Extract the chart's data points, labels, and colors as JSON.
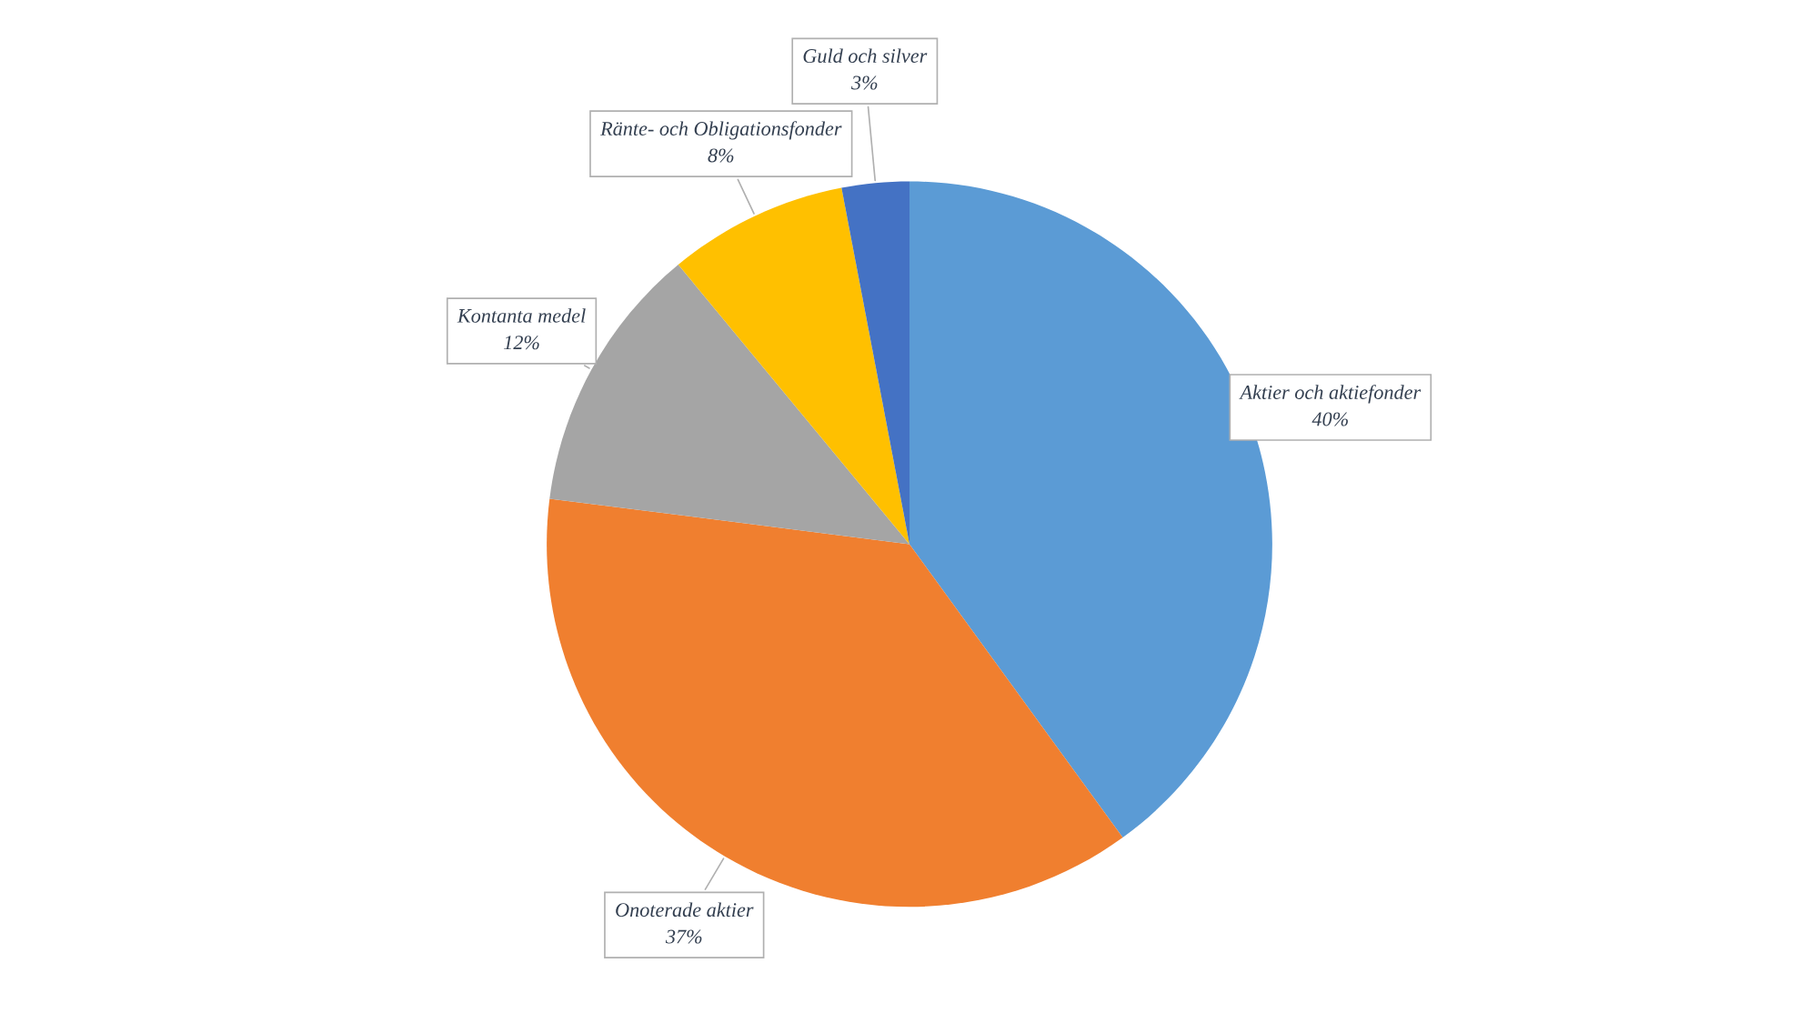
{
  "chart_data": {
    "type": "pie",
    "categories": [
      "Aktier och aktiefonder",
      "Onoterade aktier",
      "Kontanta medel",
      "Ränte- och Obligationsfonder",
      "Guld och silver"
    ],
    "values": [
      40,
      37,
      12,
      8,
      3
    ],
    "colors": [
      "#5b9bd5",
      "#f07f2f",
      "#a5a5a5",
      "#ffc000",
      "#4472c4"
    ],
    "value_labels": [
      "40%",
      "37%",
      "12%",
      "8%",
      "3%"
    ],
    "legend": false
  }
}
